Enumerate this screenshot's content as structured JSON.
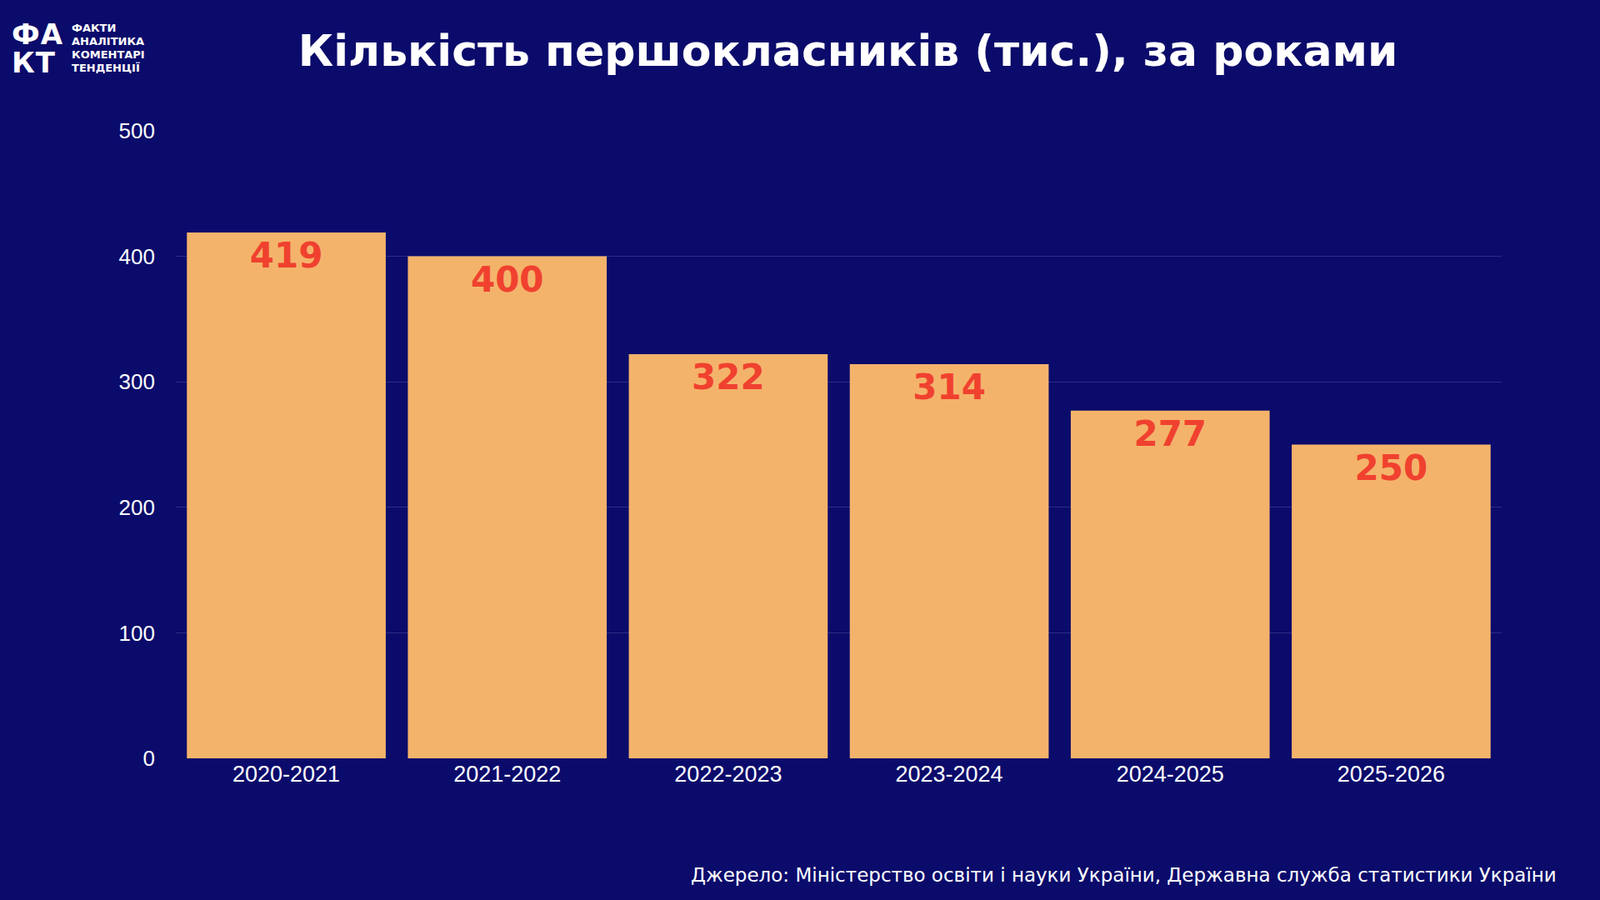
{
  "chart_data": {
    "type": "bar",
    "title": "Кількість першокласників (тис.), за роками",
    "categories": [
      "2020-2021",
      "2021-2022",
      "2022-2023",
      "2023-2024",
      "2024-2025",
      "2025-2026"
    ],
    "values": [
      419,
      400,
      322,
      314,
      277,
      250
    ],
    "color": "#f4b36b",
    "ylim": [
      0,
      500
    ],
    "yticks": [
      0,
      100,
      200,
      300,
      400,
      500
    ],
    "grid": true,
    "data_labels": true,
    "source": "Джерело: Міністерство освіти і науки України, Державна служба статистики України",
    "logo": [
      "ФА",
      "КТ"
    ],
    "logo_text": [
      "ФАКТИ",
      "АНАЛІТИКА",
      "КОМЕНТАРІ",
      "ТЕНДЕНЦІЇ"
    ]
  }
}
